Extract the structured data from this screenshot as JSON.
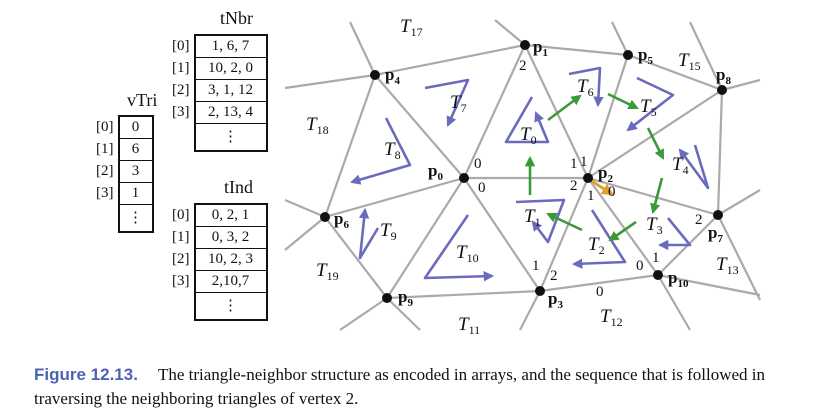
{
  "arrays": {
    "vTri": {
      "label": "vTri",
      "indices": [
        "[0]",
        "[1]",
        "[2]",
        "[3]",
        ""
      ],
      "values": [
        "0",
        "6",
        "3",
        "1",
        "⋮"
      ]
    },
    "tNbr": {
      "label": "tNbr",
      "indices": [
        "[0]",
        "[1]",
        "[2]",
        "[3]",
        ""
      ],
      "values": [
        "1, 6, 7",
        "10, 2, 0",
        "3, 1, 12",
        "2, 13, 4",
        "⋮"
      ]
    },
    "tInd": {
      "label": "tInd",
      "indices": [
        "[0]",
        "[1]",
        "[2]",
        "[3]",
        ""
      ],
      "values": [
        "0, 2, 1",
        "0, 3, 2",
        "10, 2, 3",
        "2,10,7",
        "⋮"
      ]
    }
  },
  "diagram": {
    "vertices": [
      {
        "id": "p0",
        "label": "p",
        "sub": "0"
      },
      {
        "id": "p1",
        "label": "p",
        "sub": "1"
      },
      {
        "id": "p2",
        "label": "p",
        "sub": "2"
      },
      {
        "id": "p3",
        "label": "p",
        "sub": "3"
      },
      {
        "id": "p4",
        "label": "p",
        "sub": "4"
      },
      {
        "id": "p5",
        "label": "p",
        "sub": "5"
      },
      {
        "id": "p6",
        "label": "p",
        "sub": "6"
      },
      {
        "id": "p7",
        "label": "p",
        "sub": "7"
      },
      {
        "id": "p8",
        "label": "p",
        "sub": "8"
      },
      {
        "id": "p9",
        "label": "p",
        "sub": "9"
      },
      {
        "id": "p10",
        "label": "p",
        "sub": "10"
      }
    ],
    "triangles": [
      {
        "label": "T",
        "sub": "0"
      },
      {
        "label": "T",
        "sub": "1"
      },
      {
        "label": "T",
        "sub": "2"
      },
      {
        "label": "T",
        "sub": "3"
      },
      {
        "label": "T",
        "sub": "4"
      },
      {
        "label": "T",
        "sub": "5"
      },
      {
        "label": "T",
        "sub": "6"
      },
      {
        "label": "T",
        "sub": "7"
      },
      {
        "label": "T",
        "sub": "8"
      },
      {
        "label": "T",
        "sub": "9"
      },
      {
        "label": "T",
        "sub": "10"
      },
      {
        "label": "T",
        "sub": "11"
      },
      {
        "label": "T",
        "sub": "12"
      },
      {
        "label": "T",
        "sub": "13"
      },
      {
        "label": "T",
        "sub": "15"
      },
      {
        "label": "T",
        "sub": "17"
      },
      {
        "label": "T",
        "sub": "18"
      },
      {
        "label": "T",
        "sub": "19"
      }
    ],
    "corner_indices": [
      "0",
      "0",
      "0",
      "1",
      "2",
      "0",
      "1",
      "2",
      "2",
      "1",
      "1",
      "0",
      "2",
      "1",
      "2"
    ],
    "colors": {
      "mesh": "#aaaaaa",
      "winding": "#6b6bbd",
      "traversal": "#3a9a3a",
      "start": "#e0a030",
      "vertex": "#111111"
    }
  },
  "caption": {
    "figure": "Figure 12.13.",
    "text": "The triangle-neighbor structure as encoded in arrays, and the sequence that is followed in traversing the neighboring triangles of vertex 2."
  }
}
